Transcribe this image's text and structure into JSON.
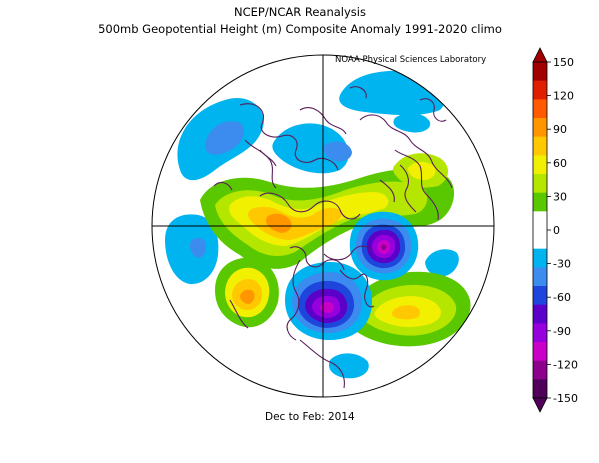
{
  "title": "NCEP/NCAR Reanalysis",
  "subtitle": "500mb Geopotential Height (m) Composite Anomaly 1991-2020 climo",
  "credit": "NOAA Physical Sciences Laboratory",
  "period": "Dec to Feb: 2014",
  "colorbar": {
    "ticks": [
      "150",
      "120",
      "90",
      "60",
      "30",
      "0",
      "-30",
      "-60",
      "-90",
      "-120",
      "-150"
    ],
    "colors": [
      "#a00000",
      "#e01e00",
      "#ff5a00",
      "#ff9600",
      "#ffc800",
      "#f0f000",
      "#b4e600",
      "#5ac800",
      "#ffffff",
      "#ffffff",
      "#00b4f0",
      "#3c8cf0",
      "#1e46dc",
      "#5a00c8",
      "#9600dc",
      "#c800c8",
      "#8c008c",
      "#50005a"
    ]
  },
  "colors": {
    "coast": "#5a1e5a",
    "frame": "#000000"
  }
}
